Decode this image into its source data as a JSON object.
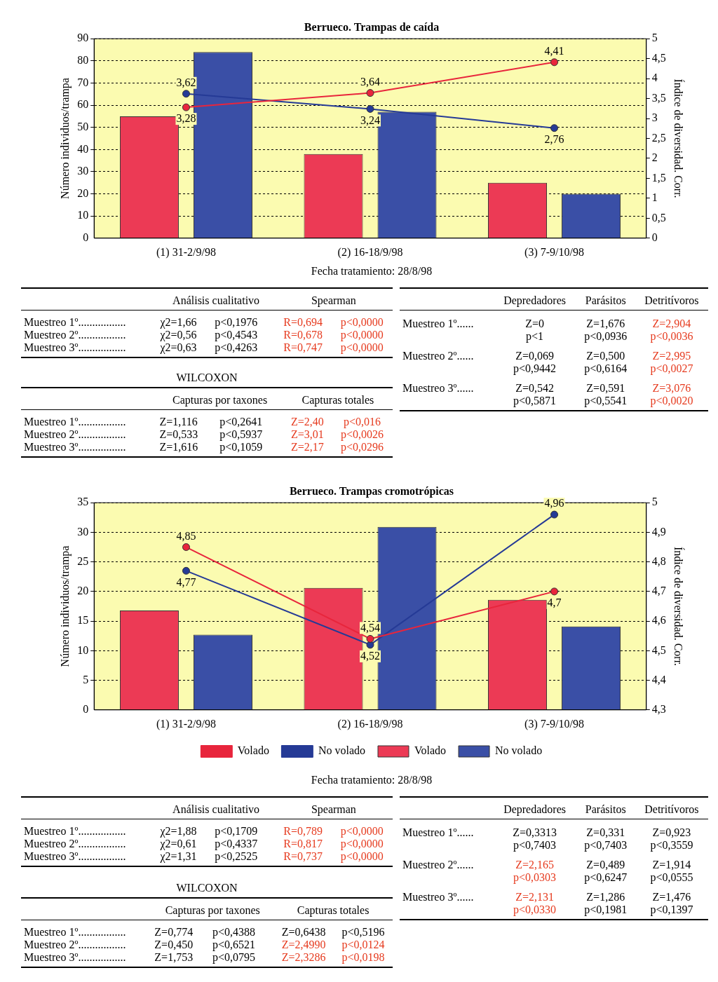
{
  "chart_data": [
    {
      "type": "bar",
      "title": "Berrueco. Trampas de caída",
      "ylabel": "Número individuos/trampa",
      "y2label": "Índice de diversidad. Corr.",
      "categories": [
        "(1) 31-2/9/98",
        "(2) 16-18/9/98",
        "(3) 7-9/10/98"
      ],
      "series": [
        {
          "type": "bar",
          "color": "#ec3a55",
          "values": [
            55,
            38,
            25
          ]
        },
        {
          "type": "bar",
          "color": "#3a4fa6",
          "values": [
            84,
            57,
            20
          ]
        },
        {
          "type": "line",
          "axis": "y2",
          "color": "#e8253c",
          "values": [
            3.28,
            3.64,
            4.41
          ],
          "value_labels": [
            "3,28",
            "3,64",
            "4,41"
          ]
        },
        {
          "type": "line",
          "axis": "y2",
          "color": "#253a96",
          "values": [
            3.62,
            3.24,
            2.76
          ],
          "value_labels": [
            "3,62",
            "3,24",
            "2,76"
          ]
        }
      ],
      "ylim": [
        0,
        90
      ],
      "yticks": [
        0,
        10,
        20,
        30,
        40,
        50,
        60,
        70,
        80,
        90
      ],
      "y2lim": [
        0,
        5
      ],
      "y2ticks": [
        0,
        {
          "value": 0.5,
          "label": "0,5"
        },
        1,
        {
          "value": 1.5,
          "label": "1,5"
        },
        2,
        {
          "value": 2.5,
          "label": "2,5"
        },
        3,
        {
          "value": 3.5,
          "label": "3,5"
        },
        4,
        {
          "value": 4.5,
          "label": "4,5"
        },
        5
      ],
      "grid": "y",
      "marker": "circle",
      "annotations": [
        "Fecha tratamiento: 28/8/98"
      ]
    },
    {
      "type": "other",
      "annotations": [
        "Análisis cualitativo",
        "Spearman",
        "Muestreo 1º.................",
        "χ2=1,66",
        "p<0,1976",
        "R=0,694",
        "p<0,0000",
        "Muestreo 2º.................",
        "χ2=0,56",
        "p<0,4543",
        "R=0,678",
        "p<0,0000",
        "Muestreo 3º.................",
        "χ2=0,63",
        "p<0,4263",
        "R=0,747",
        "p<0,0000"
      ],
      "colors": [
        "#000000",
        "#000000",
        "#000000",
        "#000000",
        "#000000",
        "#e63a1e",
        "#e63a1e",
        "#000000",
        "#000000",
        "#000000",
        "#e63a1e",
        "#e63a1e",
        "#000000",
        "#000000",
        "#000000",
        "#e63a1e",
        "#e63a1e"
      ]
    },
    {
      "type": "other",
      "title": "WILCOXON",
      "annotations": [
        "Capturas por taxones",
        "Capturas totales",
        "Muestreo 1º.................",
        "Z=1,116",
        "p<0,2641",
        "Z=2,40",
        "p<0,016",
        "Muestreo 2º.................",
        "Z=0,533",
        "p<0,5937",
        "Z=3,01",
        "p<0,0026",
        "Muestreo 3º.................",
        "Z=1,616",
        "p<0,1059",
        "Z=2,17",
        "p<0,0296"
      ],
      "colors": [
        "#000000",
        "#000000",
        "#000000",
        "#000000",
        "#000000",
        "#e63a1e",
        "#e63a1e",
        "#000000",
        "#000000",
        "#000000",
        "#e63a1e",
        "#e63a1e",
        "#000000",
        "#000000",
        "#000000",
        "#e63a1e",
        "#e63a1e"
      ]
    },
    {
      "type": "other",
      "annotations": [
        "Depredadores",
        "Parásitos",
        "Detritívoros",
        "Muestreo 1º......",
        "Z=0",
        "Z=1,676",
        "Z=2,904",
        "p<1",
        "p<0,0936",
        "p<0,0036",
        "Muestreo 2º......",
        "Z=0,069",
        "Z=0,500",
        "Z=2,995",
        "p<0,9442",
        "p<0,6164",
        "p<0,0027",
        "Muestreo 3º......",
        "Z=0,542",
        "Z=0,591",
        "Z=3,076",
        "p<0,5871",
        "p<0,5541",
        "p<0,0020"
      ],
      "colors": [
        "#000000",
        "#000000",
        "#000000",
        "#000000",
        "#000000",
        "#000000",
        "#e63a1e",
        "#000000",
        "#000000",
        "#e63a1e",
        "#000000",
        "#000000",
        "#000000",
        "#e63a1e",
        "#000000",
        "#000000",
        "#e63a1e",
        "#000000",
        "#000000",
        "#000000",
        "#e63a1e",
        "#000000",
        "#000000",
        "#e63a1e"
      ]
    },
    {
      "type": "bar",
      "title": "Berrueco. Trampas cromotrópicas",
      "ylabel": "Número individuos/trampa",
      "y2label": "Índice de diversidad. Corr.",
      "categories": [
        "(1) 31-2/9/98",
        "(2) 16-18/9/98",
        "(3) 7-9/10/98"
      ],
      "series": [
        {
          "type": "bar",
          "name": "Volado",
          "color": "#ec3a55",
          "values": [
            16.8,
            20.6,
            18.6
          ]
        },
        {
          "type": "bar",
          "name": "No volado",
          "color": "#3a4fa6",
          "values": [
            12.7,
            30.9,
            14.1
          ]
        },
        {
          "type": "line",
          "axis": "y2",
          "name": "Volado",
          "color": "#e8253c",
          "values": [
            4.85,
            4.54,
            4.7
          ],
          "value_labels": [
            "4,85",
            "4,54",
            "4,7"
          ]
        },
        {
          "type": "line",
          "axis": "y2",
          "name": "No volado",
          "color": "#253a96",
          "values": [
            4.77,
            4.52,
            4.96
          ],
          "value_labels": [
            "4,77",
            "4,52",
            "4,96"
          ]
        }
      ],
      "ylim": [
        0,
        35
      ],
      "yticks": [
        0,
        5,
        10,
        15,
        20,
        25,
        30,
        35
      ],
      "y2lim": [
        4.3,
        5
      ],
      "y2ticks": [
        {
          "value": 4.3,
          "label": "4,3"
        },
        {
          "value": 4.4,
          "label": "4,4"
        },
        {
          "value": 4.5,
          "label": "4,5"
        },
        {
          "value": 4.6,
          "label": "4,6"
        },
        {
          "value": 4.7,
          "label": "4,7"
        },
        {
          "value": 4.8,
          "label": "4,8"
        },
        {
          "value": 4.9,
          "label": "4,9"
        },
        5
      ],
      "grid": "y",
      "marker": "circle",
      "legend": "bottom",
      "annotations": [
        "Fecha tratamiento: 28/8/98"
      ]
    },
    {
      "type": "other",
      "annotations": [
        "Análisis cualitativo",
        "Spearman",
        "Muestreo 1º.................",
        "χ2=1,88",
        "p<0,1709",
        "R=0,789",
        "p<0,0000",
        "Muestreo 2º.................",
        "χ2=0,61",
        "p<0,4337",
        "R=0,817",
        "p<0,0000",
        "Muestreo 3º.................",
        "χ2=1,31",
        "p<0,2525",
        "R=0,737",
        "p<0,0000"
      ],
      "colors": [
        "#000000",
        "#000000",
        "#000000",
        "#000000",
        "#000000",
        "#e63a1e",
        "#e63a1e",
        "#000000",
        "#000000",
        "#000000",
        "#e63a1e",
        "#e63a1e",
        "#000000",
        "#000000",
        "#000000",
        "#e63a1e",
        "#e63a1e"
      ]
    },
    {
      "type": "other",
      "title": "WILCOXON",
      "annotations": [
        "Capturas por taxones",
        "Capturas totales",
        "Muestreo 1º.................",
        "Z=0,774",
        "p<0,4388",
        "Z=0,6438",
        "p<0,5196",
        "Muestreo 2º.................",
        "Z=0,450",
        "p<0,6521",
        "Z=2,4990",
        "p<0,0124",
        "Muestreo 3º.................",
        "Z=1,753",
        "p<0,0795",
        "Z=2,3286",
        "p<0,0198"
      ],
      "colors": [
        "#000000",
        "#000000",
        "#000000",
        "#000000",
        "#000000",
        "#000000",
        "#000000",
        "#000000",
        "#000000",
        "#000000",
        "#e63a1e",
        "#e63a1e",
        "#000000",
        "#000000",
        "#000000",
        "#e63a1e",
        "#e63a1e"
      ]
    },
    {
      "type": "other",
      "annotations": [
        "Depredadores",
        "Parásitos",
        "Detritívoros",
        "Muestreo 1º......",
        "Z=0,3313",
        "Z=0,331",
        "Z=0,923",
        "p<0,7403",
        "p<0,7403",
        "p<0,3559",
        "Muestreo 2º......",
        "Z=2,165",
        "Z=0,489",
        "Z=1,914",
        "p<0,0303",
        "p<0,6247",
        "p<0,0555",
        "Muestreo 3º......",
        "Z=2,131",
        "Z=1,286",
        "Z=1,476",
        "p<0,0330",
        "p<0,1981",
        "p<0,1397"
      ],
      "colors": [
        "#000000",
        "#000000",
        "#000000",
        "#000000",
        "#000000",
        "#000000",
        "#000000",
        "#000000",
        "#000000",
        "#000000",
        "#000000",
        "#e63a1e",
        "#000000",
        "#000000",
        "#e63a1e",
        "#000000",
        "#000000",
        "#000000",
        "#e63a1e",
        "#000000",
        "#000000",
        "#e63a1e",
        "#000000",
        "#000000"
      ]
    }
  ]
}
